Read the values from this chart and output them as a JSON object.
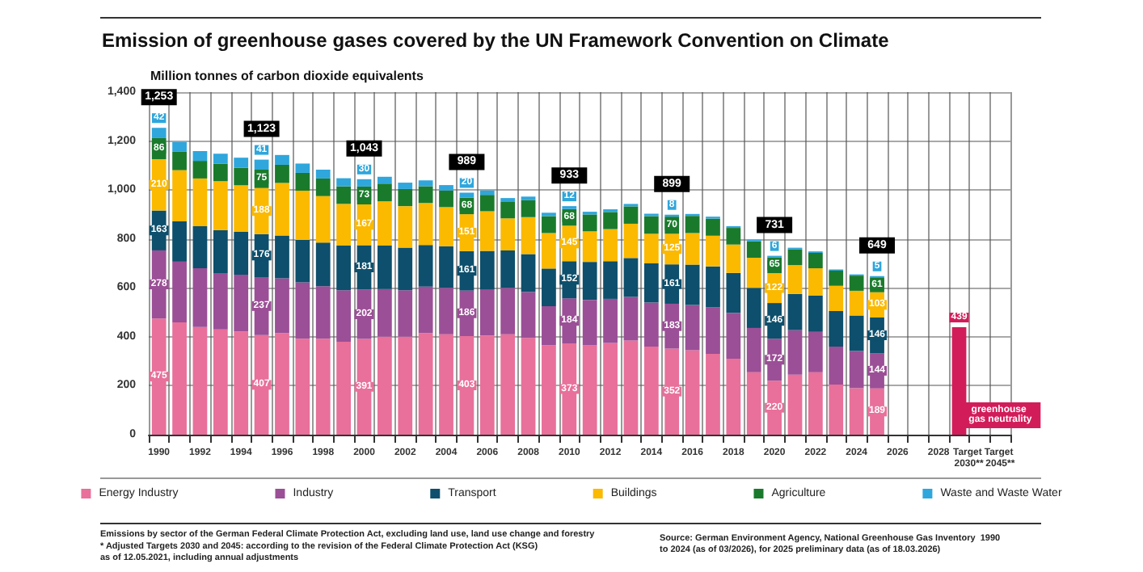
{
  "chart_data": {
    "type": "bar",
    "title": "Emission of greenhouse gases covered by the UN Framework Convention on Climate",
    "ylabel": "Million tonnes of carbon dioxide equivalents",
    "categories": [
      "1990",
      null,
      "1992",
      null,
      "1994",
      null,
      "1996",
      null,
      "1998",
      null,
      "2000",
      null,
      "2002",
      null,
      "2004",
      null,
      "2006",
      null,
      "2008",
      null,
      "2010",
      null,
      "2012",
      null,
      "2014",
      null,
      "2016",
      null,
      "2018",
      null,
      "2020",
      null,
      "2022",
      null,
      "2024",
      null,
      "2026",
      null,
      "2028",
      "Target 2030**",
      null,
      "Target 2045**"
    ],
    "stacked": true,
    "series": [
      {
        "name": "Energy Industry",
        "color": "#e8709a",
        "values": [
          475,
          459,
          440,
          430,
          422,
          407,
          415,
          392,
          392,
          380,
          391,
          400,
          400,
          415,
          410,
          403,
          405,
          410,
          395,
          365,
          373,
          365,
          375,
          385,
          360,
          352,
          345,
          330,
          310,
          255,
          220,
          245,
          255,
          205,
          190,
          189,
          null,
          null,
          null,
          null,
          null,
          null
        ],
        "value_labels": [
          "475",
          null,
          null,
          null,
          null,
          "407",
          null,
          null,
          null,
          null,
          "391",
          null,
          null,
          null,
          null,
          "403",
          null,
          null,
          null,
          null,
          "373",
          null,
          null,
          null,
          null,
          "352",
          null,
          null,
          null,
          null,
          "220",
          null,
          null,
          null,
          null,
          "189",
          null,
          null,
          null,
          null,
          null,
          null
        ]
      },
      {
        "name": "Industry",
        "color": "#9b4f96",
        "values": [
          278,
          248,
          240,
          230,
          232,
          237,
          224,
          230,
          215,
          210,
          202,
          195,
          190,
          190,
          190,
          186,
          189,
          190,
          188,
          160,
          184,
          186,
          180,
          178,
          180,
          183,
          185,
          190,
          188,
          181,
          172,
          182,
          165,
          155,
          152,
          144,
          null,
          null,
          null,
          null,
          null,
          null
        ],
        "value_labels": [
          "278",
          null,
          null,
          null,
          null,
          "237",
          null,
          null,
          null,
          null,
          "202",
          null,
          null,
          null,
          null,
          "186",
          null,
          null,
          null,
          null,
          "184",
          null,
          null,
          null,
          null,
          "183",
          null,
          null,
          null,
          null,
          "172",
          null,
          null,
          null,
          null,
          "144",
          null,
          null,
          null,
          null,
          null,
          null
        ]
      },
      {
        "name": "Transport",
        "color": "#0d4f6c",
        "values": [
          163,
          165,
          172,
          176,
          175,
          176,
          175,
          174,
          178,
          183,
          181,
          178,
          174,
          170,
          170,
          161,
          157,
          153,
          155,
          154,
          152,
          155,
          154,
          159,
          160,
          161,
          165,
          168,
          163,
          164,
          146,
          148,
          148,
          145,
          145,
          146,
          null,
          null,
          null,
          null,
          null,
          null
        ],
        "value_labels": [
          "163",
          null,
          null,
          null,
          null,
          "176",
          null,
          null,
          null,
          null,
          "181",
          null,
          null,
          null,
          null,
          "161",
          null,
          null,
          null,
          null,
          "152",
          null,
          null,
          null,
          null,
          "161",
          null,
          null,
          null,
          null,
          "146",
          null,
          null,
          null,
          null,
          "146",
          null,
          null,
          null,
          null,
          null,
          null
        ]
      },
      {
        "name": "Buildings",
        "color": "#fbb900",
        "values": [
          210,
          209,
          195,
          200,
          190,
          188,
          215,
          201,
          190,
          170,
          167,
          181,
          170,
          172,
          160,
          151,
          162,
          131,
          151,
          145,
          145,
          125,
          131,
          140,
          121,
          125,
          129,
          125,
          116,
          123,
          122,
          118,
          112,
          103,
          101,
          103,
          null,
          null,
          null,
          null,
          null,
          null
        ],
        "value_labels": [
          "210",
          null,
          null,
          null,
          null,
          "188",
          null,
          null,
          null,
          null,
          "167",
          null,
          null,
          null,
          null,
          "151",
          null,
          null,
          null,
          null,
          "145",
          null,
          null,
          null,
          null,
          "125",
          null,
          null,
          null,
          null,
          "122",
          null,
          null,
          null,
          null,
          "103",
          null,
          null,
          null,
          null,
          null,
          null
        ]
      },
      {
        "name": "Agriculture",
        "color": "#1a7a2c",
        "values": [
          86,
          75,
          72,
          72,
          72,
          75,
          74,
          73,
          72,
          72,
          73,
          72,
          70,
          68,
          68,
          68,
          67,
          67,
          69,
          69,
          68,
          69,
          70,
          71,
          72,
          70,
          70,
          70,
          68,
          67,
          65,
          65,
          63,
          62,
          62,
          61,
          null,
          null,
          null,
          null,
          null,
          null
        ],
        "value_labels": [
          "86",
          null,
          null,
          null,
          null,
          "75",
          null,
          null,
          null,
          null,
          "73",
          null,
          null,
          null,
          null,
          "68",
          null,
          null,
          null,
          null,
          "68",
          null,
          null,
          null,
          null,
          "70",
          null,
          null,
          null,
          null,
          "65",
          null,
          null,
          null,
          null,
          "61",
          null,
          null,
          null,
          null,
          null,
          null
        ]
      },
      {
        "name": "Waste and Waste Water",
        "color": "#2fa6dc",
        "values": [
          42,
          40,
          40,
          40,
          41,
          41,
          40,
          38,
          36,
          33,
          30,
          28,
          26,
          24,
          22,
          20,
          18,
          16,
          15,
          14,
          12,
          11,
          11,
          10,
          10,
          8,
          8,
          8,
          7,
          7,
          6,
          6,
          6,
          5,
          5,
          5,
          null,
          null,
          null,
          null,
          null,
          null
        ],
        "value_labels": [
          "42",
          null,
          null,
          null,
          null,
          "41",
          null,
          null,
          null,
          null,
          "30",
          null,
          null,
          null,
          null,
          "20",
          null,
          null,
          null,
          null,
          "12",
          null,
          null,
          null,
          null,
          "8",
          null,
          null,
          null,
          null,
          "6",
          null,
          null,
          null,
          null,
          "5",
          null,
          null,
          null,
          null,
          null,
          null
        ]
      },
      {
        "color": "#d21c5a",
        "values": [
          null,
          null,
          null,
          null,
          null,
          null,
          null,
          null,
          null,
          null,
          null,
          null,
          null,
          null,
          null,
          null,
          null,
          null,
          null,
          null,
          null,
          null,
          null,
          null,
          null,
          null,
          null,
          null,
          null,
          null,
          null,
          null,
          null,
          null,
          null,
          null,
          null,
          null,
          null,
          439,
          null,
          0
        ],
        "value_labels": [
          null,
          null,
          null,
          null,
          null,
          null,
          null,
          null,
          null,
          null,
          null,
          null,
          null,
          null,
          null,
          null,
          null,
          null,
          null,
          null,
          null,
          null,
          null,
          null,
          null,
          null,
          null,
          null,
          null,
          null,
          null,
          null,
          null,
          null,
          null,
          null,
          null,
          null,
          null,
          "439",
          null,
          "greenhouse gas neutrality"
        ]
      }
    ],
    "totals": [
      "1,253",
      null,
      null,
      null,
      null,
      "1,123",
      null,
      null,
      null,
      null,
      "1,043",
      null,
      null,
      null,
      null,
      "989",
      null,
      null,
      null,
      null,
      "933",
      null,
      null,
      null,
      null,
      "899",
      null,
      null,
      null,
      null,
      "731",
      null,
      null,
      null,
      null,
      "649",
      null,
      null,
      null,
      null,
      null,
      null
    ],
    "ylim": [
      0,
      1400
    ],
    "yticks": [
      0,
      200,
      400,
      600,
      800,
      {
        "value": 1000,
        "label": "1,000"
      },
      {
        "value": 1200,
        "label": "1,200"
      },
      {
        "value": 1400,
        "label": "1,400"
      }
    ],
    "grid": true,
    "legend": "bottom",
    "annotations": [
      "Emissions by sector of the German Federal Climate Protection Act, excluding land use, land use change and forestry",
      "* Adjusted Targets 2030 and 2045: according to the revision of the Federal Climate Protection Act (KSG) as of 12.05.2021, including annual adjustments",
      "Source: German Environment Agency, National Greenhouse Gas Inventory  1990 to 2024 (as of 03/2026), for 2025 preliminary data (as of 18.03.2026)"
    ]
  }
}
